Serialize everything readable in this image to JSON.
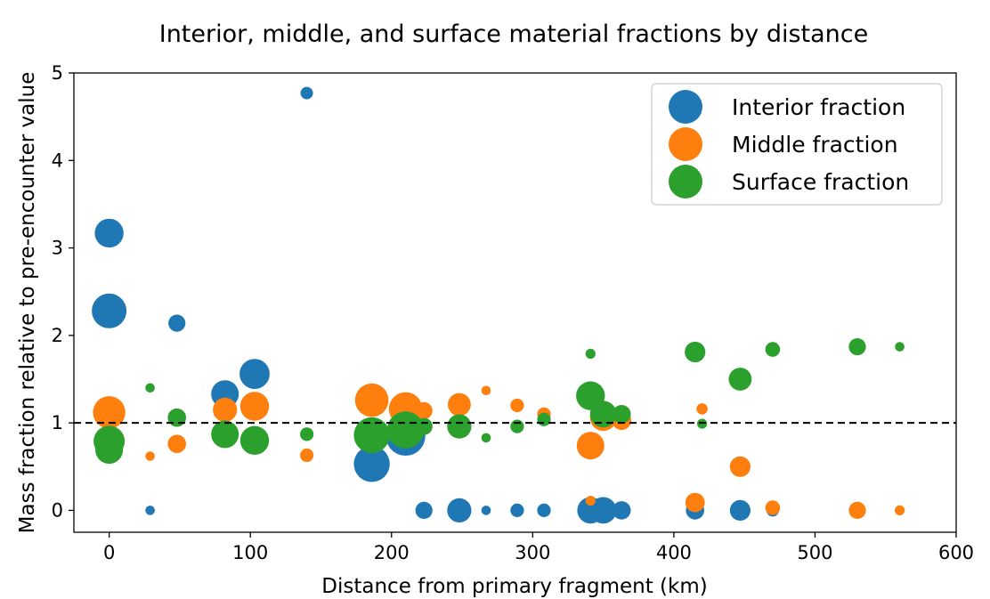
{
  "chart_data": {
    "type": "scatter",
    "title": "Interior, middle, and surface material fractions by distance",
    "xlabel": "Distance from primary fragment (km)",
    "ylabel": "Mass fraction relative to pre-encounter value",
    "xlim": [
      -25,
      600
    ],
    "ylim": [
      -0.25,
      5
    ],
    "xticks": [
      0,
      100,
      200,
      300,
      400,
      500,
      600
    ],
    "yticks": [
      0,
      1,
      2,
      3,
      4,
      5
    ],
    "grid": false,
    "legend_position": "top-right",
    "reference_line": {
      "y": 1,
      "style": "dashed",
      "color": "#000000"
    },
    "series": [
      {
        "name": "Interior fraction",
        "color": "#1f77b4",
        "points": [
          {
            "x": 0,
            "y": 3.17,
            "size": 2.0
          },
          {
            "x": 0,
            "y": 2.28,
            "size": 2.5
          },
          {
            "x": 48,
            "y": 2.14,
            "size": 1.0
          },
          {
            "x": 29,
            "y": 0.0,
            "size": 0.35
          },
          {
            "x": 82,
            "y": 1.33,
            "size": 1.9
          },
          {
            "x": 103,
            "y": 1.56,
            "size": 2.1
          },
          {
            "x": 140,
            "y": 4.77,
            "size": 0.6
          },
          {
            "x": 186,
            "y": 0.53,
            "size": 2.6
          },
          {
            "x": 210,
            "y": 0.85,
            "size": 2.9
          },
          {
            "x": 223,
            "y": 0.0,
            "size": 1.0
          },
          {
            "x": 248,
            "y": 0.0,
            "size": 1.6
          },
          {
            "x": 267,
            "y": 0.0,
            "size": 0.35
          },
          {
            "x": 289,
            "y": 0.0,
            "size": 0.7
          },
          {
            "x": 308,
            "y": 0.0,
            "size": 0.7
          },
          {
            "x": 341,
            "y": 0.0,
            "size": 1.8
          },
          {
            "x": 350,
            "y": 0.0,
            "size": 1.8
          },
          {
            "x": 363,
            "y": 0.0,
            "size": 1.1
          },
          {
            "x": 415,
            "y": 0.0,
            "size": 1.1
          },
          {
            "x": 447,
            "y": 0.0,
            "size": 1.3
          },
          {
            "x": 470,
            "y": 0.0,
            "size": 0.6
          }
        ]
      },
      {
        "name": "Middle fraction",
        "color": "#ff7f0e",
        "points": [
          {
            "x": 0,
            "y": 1.12,
            "size": 2.3
          },
          {
            "x": 29,
            "y": 0.62,
            "size": 0.35
          },
          {
            "x": 48,
            "y": 0.76,
            "size": 1.1
          },
          {
            "x": 82,
            "y": 1.15,
            "size": 1.6
          },
          {
            "x": 103,
            "y": 1.19,
            "size": 2.0
          },
          {
            "x": 140,
            "y": 0.63,
            "size": 0.7
          },
          {
            "x": 186,
            "y": 1.26,
            "size": 2.4
          },
          {
            "x": 210,
            "y": 1.16,
            "size": 2.4
          },
          {
            "x": 223,
            "y": 1.14,
            "size": 1.0
          },
          {
            "x": 248,
            "y": 1.21,
            "size": 1.5
          },
          {
            "x": 267,
            "y": 1.37,
            "size": 0.35
          },
          {
            "x": 289,
            "y": 1.2,
            "size": 0.7
          },
          {
            "x": 308,
            "y": 1.1,
            "size": 0.7
          },
          {
            "x": 341,
            "y": 0.11,
            "size": 0.4
          },
          {
            "x": 341,
            "y": 0.74,
            "size": 1.9
          },
          {
            "x": 350,
            "y": 1.06,
            "size": 1.8
          },
          {
            "x": 363,
            "y": 1.03,
            "size": 1.2
          },
          {
            "x": 415,
            "y": 0.09,
            "size": 1.2
          },
          {
            "x": 420,
            "y": 1.16,
            "size": 0.5
          },
          {
            "x": 447,
            "y": 0.5,
            "size": 1.3
          },
          {
            "x": 470,
            "y": 0.03,
            "size": 0.8
          },
          {
            "x": 530,
            "y": 0.0,
            "size": 1.0
          },
          {
            "x": 560,
            "y": 0.0,
            "size": 0.4
          }
        ]
      },
      {
        "name": "Surface fraction",
        "color": "#2ca02c",
        "points": [
          {
            "x": 0,
            "y": 0.79,
            "size": 2.2
          },
          {
            "x": 0,
            "y": 0.69,
            "size": 1.9
          },
          {
            "x": 29,
            "y": 1.4,
            "size": 0.35
          },
          {
            "x": 48,
            "y": 1.06,
            "size": 1.1
          },
          {
            "x": 82,
            "y": 0.87,
            "size": 1.9
          },
          {
            "x": 103,
            "y": 0.8,
            "size": 2.0
          },
          {
            "x": 140,
            "y": 0.87,
            "size": 0.7
          },
          {
            "x": 186,
            "y": 0.86,
            "size": 2.6
          },
          {
            "x": 210,
            "y": 0.92,
            "size": 2.7
          },
          {
            "x": 223,
            "y": 0.96,
            "size": 1.0
          },
          {
            "x": 248,
            "y": 0.96,
            "size": 1.6
          },
          {
            "x": 267,
            "y": 0.83,
            "size": 0.35
          },
          {
            "x": 289,
            "y": 0.96,
            "size": 0.7
          },
          {
            "x": 308,
            "y": 1.04,
            "size": 0.7
          },
          {
            "x": 341,
            "y": 1.79,
            "size": 0.4
          },
          {
            "x": 341,
            "y": 1.31,
            "size": 2.0
          },
          {
            "x": 350,
            "y": 1.1,
            "size": 1.8
          },
          {
            "x": 363,
            "y": 1.1,
            "size": 1.1
          },
          {
            "x": 415,
            "y": 1.81,
            "size": 1.3
          },
          {
            "x": 420,
            "y": 0.99,
            "size": 0.4
          },
          {
            "x": 447,
            "y": 1.5,
            "size": 1.5
          },
          {
            "x": 470,
            "y": 1.84,
            "size": 0.8
          },
          {
            "x": 530,
            "y": 1.87,
            "size": 1.0
          },
          {
            "x": 560,
            "y": 1.87,
            "size": 0.35
          }
        ]
      }
    ]
  }
}
